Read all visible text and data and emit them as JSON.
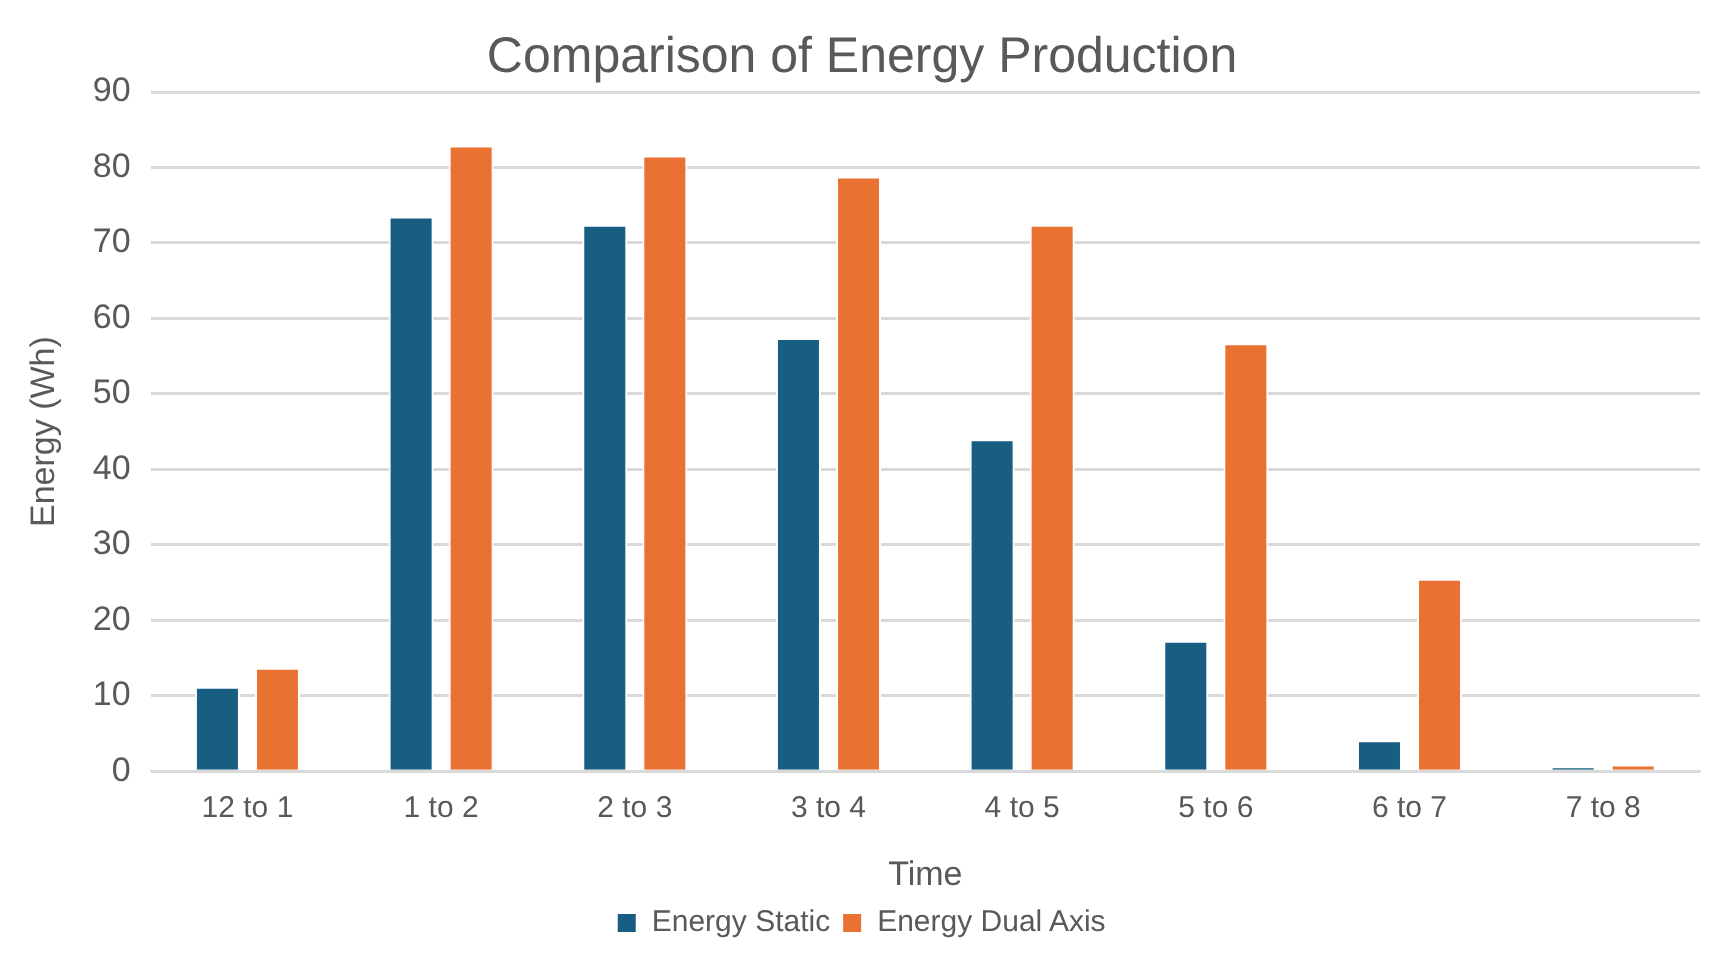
{
  "chart_data": {
    "type": "bar",
    "title": "Comparison of Energy Production",
    "xlabel": "Time",
    "ylabel": "Energy (Wh)",
    "categories": [
      "12 to 1",
      "1 to 2",
      "2 to 3",
      "3 to 4",
      "4 to 5",
      "5 to 6",
      "6 to 7",
      "7 to 8"
    ],
    "series": [
      {
        "name": "Energy Static",
        "color": "#175e82",
        "values": [
          11.2,
          73.5,
          72.4,
          57.4,
          44.0,
          17.3,
          4.1,
          0.6
        ]
      },
      {
        "name": "Energy Dual Axis",
        "color": "#e97132",
        "values": [
          13.7,
          82.9,
          81.6,
          78.8,
          72.4,
          56.7,
          25.5,
          0.9
        ]
      }
    ],
    "ylim": [
      0,
      90
    ],
    "yticks": [
      0,
      10,
      20,
      30,
      40,
      50,
      60,
      70,
      80,
      90
    ],
    "grid": "y",
    "legend": "bottom"
  }
}
